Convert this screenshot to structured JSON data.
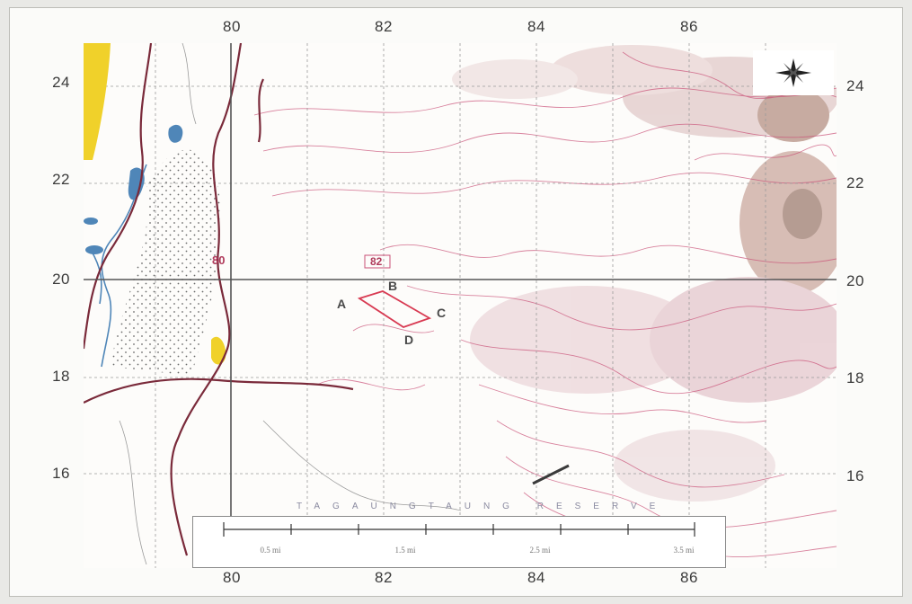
{
  "map": {
    "top_ticks": [
      "80",
      "82",
      "84",
      "86"
    ],
    "bottom_ticks": [
      "80",
      "82",
      "84",
      "86"
    ],
    "left_ticks": [
      "24",
      "22",
      "20",
      "18",
      "16"
    ],
    "right_ticks": [
      "24",
      "22",
      "20",
      "18",
      "16"
    ],
    "point_labels": [
      "A",
      "B",
      "C",
      "D"
    ],
    "contour_label_80": "80",
    "contour_label_82": "82",
    "range_text": "TAGAUNGTAUNG RESERVE"
  },
  "scale_bar": {
    "labels": [
      "0.5 mi",
      "1.5 mi",
      "2.5 mi",
      "3.5 mi"
    ]
  },
  "colors": {
    "river": "#7a2a3a",
    "water": "#4f86b8",
    "sand": "#f0d12a",
    "contour": "#c94f76",
    "relief": "#8a5540",
    "grid": "#7f7f7f",
    "block_outline": "#d83a52"
  },
  "icons": {
    "compass": "compass-star-icon"
  }
}
